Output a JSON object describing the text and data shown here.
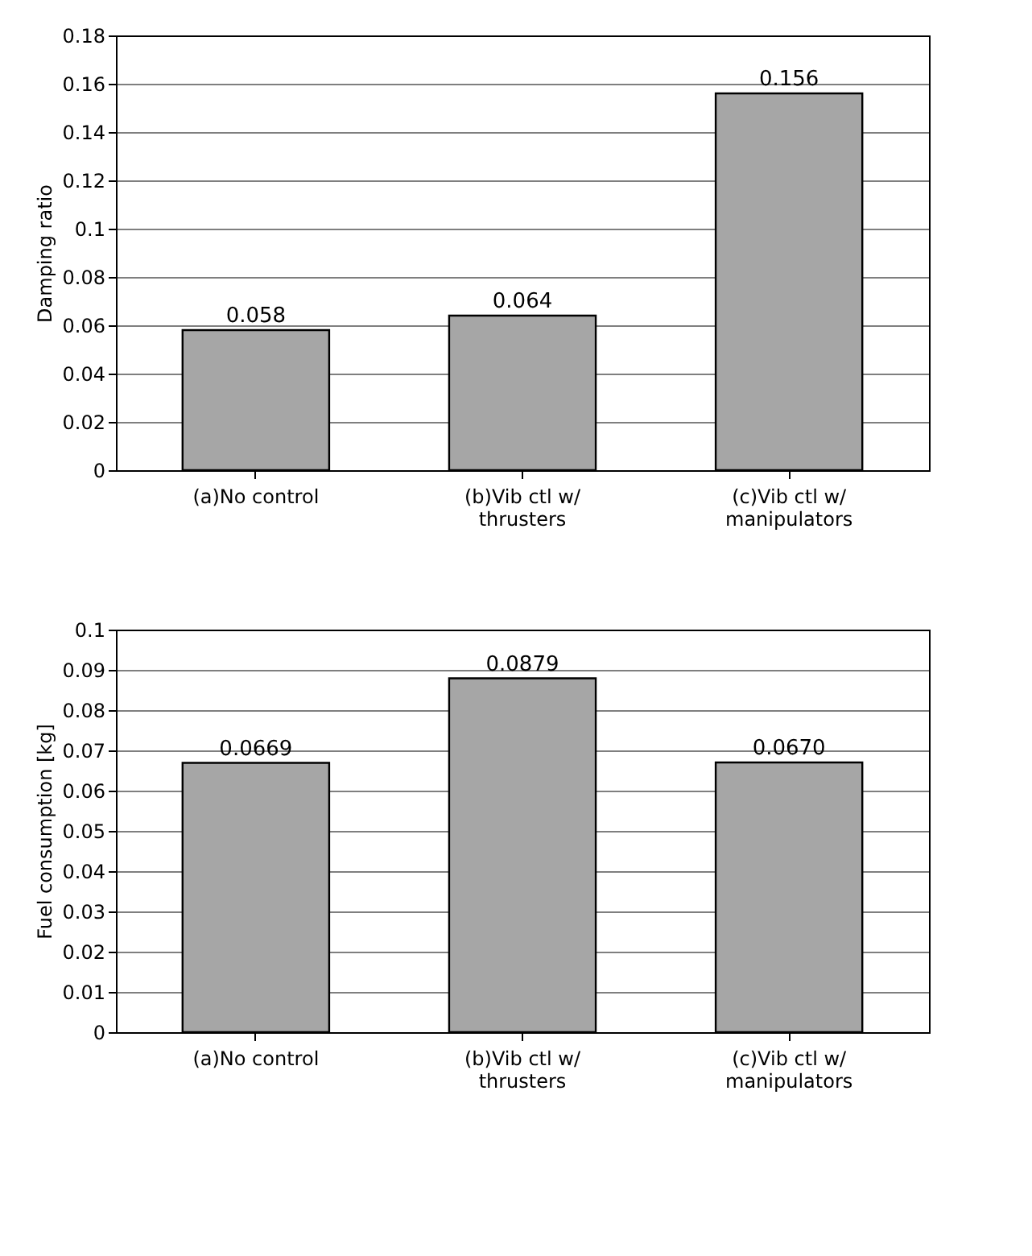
{
  "chart_data": [
    {
      "type": "bar",
      "ylabel": "Damping ratio",
      "categories": [
        "(a)No control",
        "(b)Vib ctl w/\nthrusters",
        "(c)Vib ctl w/\nmanipulators"
      ],
      "values": [
        0.058,
        0.064,
        0.156
      ],
      "value_labels": [
        "0.058",
        "0.064",
        "0.156"
      ],
      "color": "#a6a6a6",
      "ylim": [
        0,
        0.18
      ],
      "yticks": [
        0,
        0.02,
        0.04,
        0.06,
        0.08,
        0.1,
        0.12,
        0.14,
        0.16,
        0.18
      ],
      "grid": "y"
    },
    {
      "type": "bar",
      "ylabel": "Fuel consumption [kg]",
      "categories": [
        "(a)No control",
        "(b)Vib ctl w/\nthrusters",
        "(c)Vib ctl w/\nmanipulators"
      ],
      "values": [
        0.0669,
        0.0879,
        0.067
      ],
      "value_labels": [
        "0.0669",
        "0.0879",
        "0.0670"
      ],
      "color": "#a6a6a6",
      "ylim": [
        0,
        0.1
      ],
      "yticks": [
        0,
        0.01,
        0.02,
        0.03,
        0.04,
        0.05,
        0.06,
        0.07,
        0.08,
        0.09,
        0.1
      ],
      "grid": "y"
    }
  ]
}
